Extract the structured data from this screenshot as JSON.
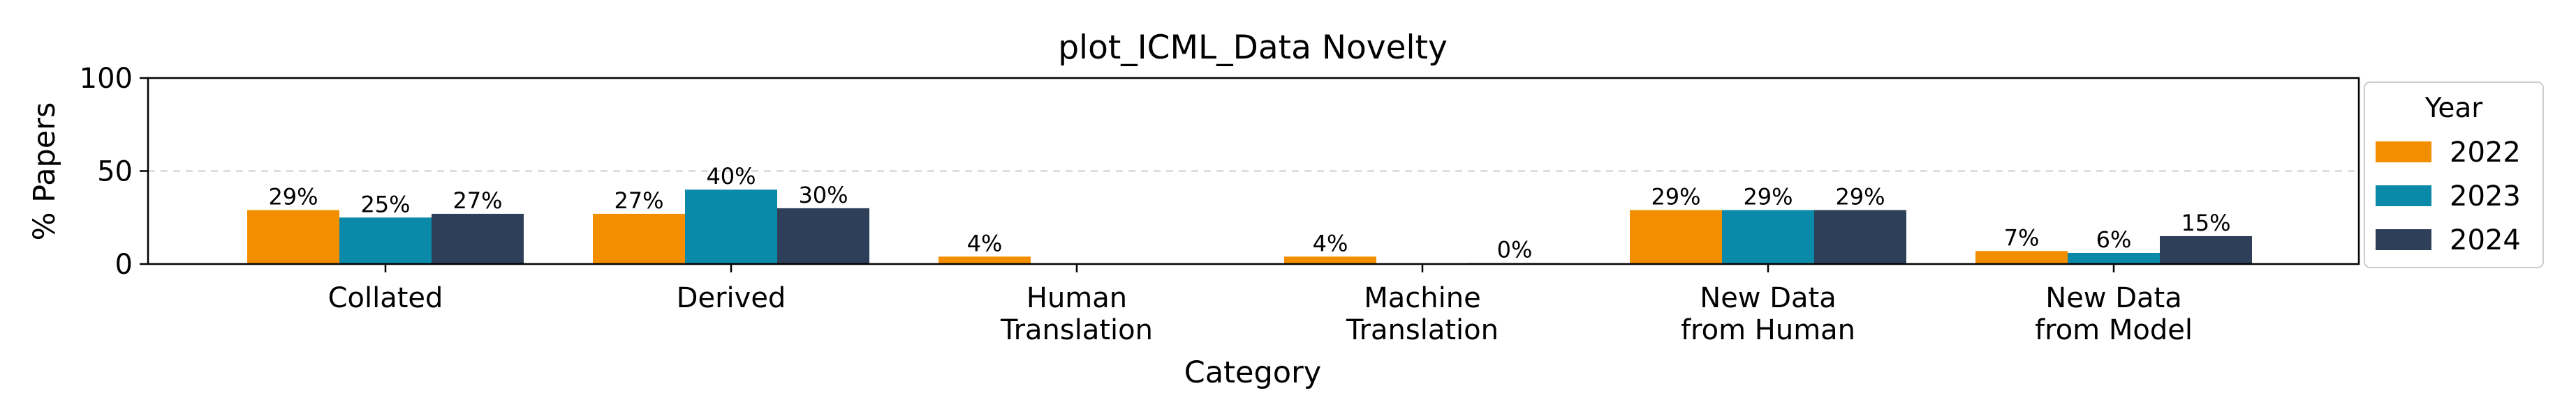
{
  "chart_data": {
    "type": "bar",
    "title": "plot_ICML_Data Novelty",
    "xlabel": "Category",
    "ylabel": "% Papers",
    "ylim": [
      0,
      100
    ],
    "yticks": [
      "0",
      "50",
      "100"
    ],
    "grid": "horizontal dashed at 50",
    "categories": [
      [
        "Collated"
      ],
      [
        "Derived"
      ],
      [
        "Human",
        "Translation"
      ],
      [
        "Machine",
        "Translation"
      ],
      [
        "New Data",
        "from Human"
      ],
      [
        "New Data",
        "from Model"
      ]
    ],
    "series": [
      {
        "name": "2022",
        "color": "#F28E00",
        "values": [
          29,
          27,
          4,
          4,
          29,
          7
        ],
        "labels": [
          "29%",
          "27%",
          "4%",
          "4%",
          "29%",
          "7%"
        ]
      },
      {
        "name": "2023",
        "color": "#0A89A8",
        "values": [
          25,
          40,
          0,
          0,
          29,
          6
        ],
        "labels": [
          "25%",
          "40%",
          "",
          "",
          "29%",
          "6%"
        ]
      },
      {
        "name": "2024",
        "color": "#2E3F59",
        "values": [
          27,
          30,
          0,
          0.5,
          29,
          15
        ],
        "labels": [
          "27%",
          "30%",
          "",
          "0%",
          "29%",
          "15%"
        ]
      }
    ],
    "legend": {
      "title": "Year",
      "placement": "right"
    }
  }
}
